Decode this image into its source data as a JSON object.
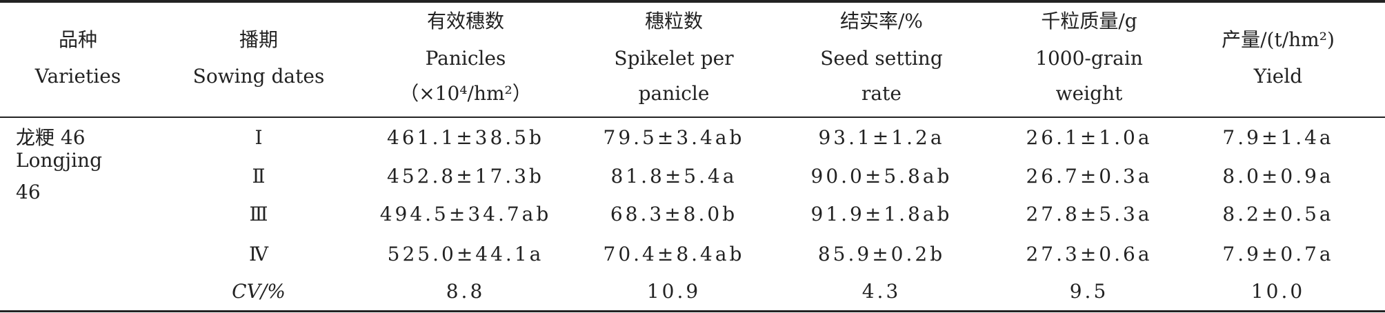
{
  "table": {
    "header": [
      [
        "品种",
        "Varieties"
      ],
      [
        "播期",
        "Sowing dates"
      ],
      [
        "有效穗数",
        "Panicles",
        "（×10⁴/hm²）"
      ],
      [
        "穗粒数",
        "Spikelet per",
        "panicle"
      ],
      [
        "结实率/%",
        "Seed setting",
        "rate"
      ],
      [
        "千粒质量/g",
        "1000-grain",
        "weight"
      ],
      [
        "产量/(t/hm²)",
        "Yield"
      ]
    ],
    "variety": [
      "龙粳 46",
      "Longjing",
      "46"
    ],
    "rows": [
      [
        "Ⅰ",
        "461.1±38.5b",
        "79.5±3.4ab",
        "93.1±1.2a",
        "26.1±1.0a",
        "7.9±1.4a"
      ],
      [
        "Ⅱ",
        "452.8±17.3b",
        "81.8±5.4a",
        "90.0±5.8ab",
        "26.7±0.3a",
        "8.0±0.9a"
      ],
      [
        "Ⅲ",
        "494.5±34.7ab",
        "68.3±8.0b",
        "91.9±1.8ab",
        "27.8±5.3a",
        "8.2±0.5a"
      ],
      [
        "Ⅳ",
        "525.0±44.1a",
        "70.4±8.4ab",
        "85.9±0.2b",
        "27.3±0.6a",
        "7.9±0.7a"
      ]
    ],
    "cv_row": [
      "CV/%",
      "8.8",
      "10.9",
      "4.3",
      "9.5",
      "10.0"
    ]
  }
}
